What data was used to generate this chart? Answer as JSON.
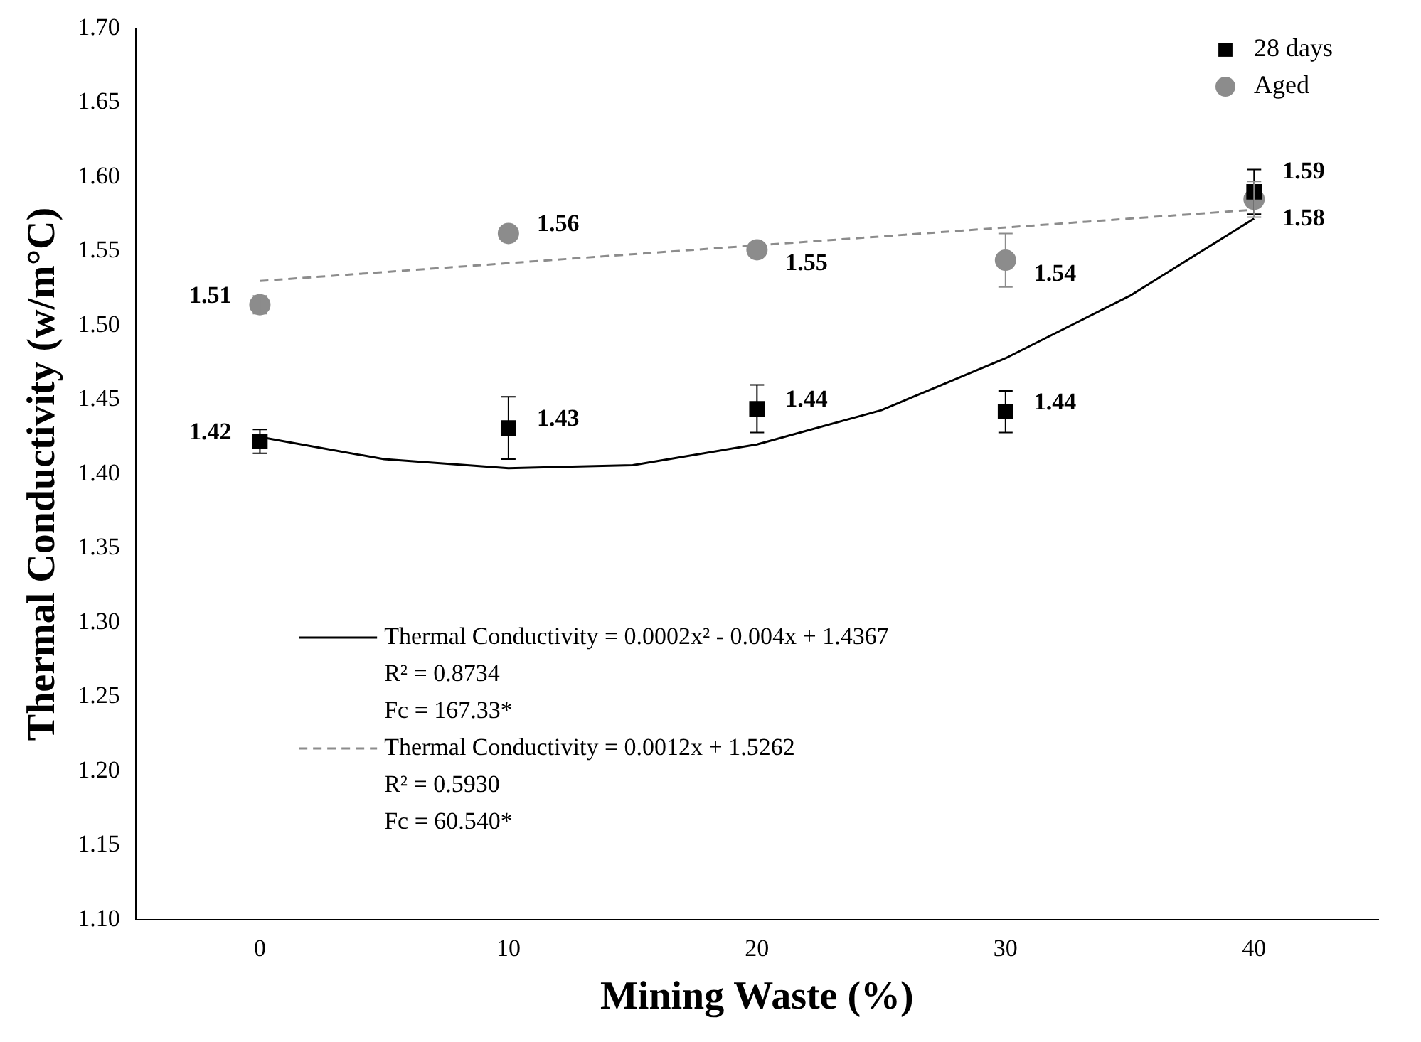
{
  "chart_data": {
    "type": "scatter",
    "xlabel": "Mining Waste (%)",
    "ylabel": "Thermal Conductivity (w/m°C)",
    "x": [
      0,
      10,
      20,
      30,
      40
    ],
    "series": [
      {
        "name": "28 days",
        "marker": "square",
        "color": "#000000",
        "values": [
          1.422,
          1.431,
          1.444,
          1.442,
          1.59
        ],
        "errors": [
          0.008,
          0.021,
          0.016,
          0.014,
          0.015
        ],
        "value_labels": [
          "1.42",
          "1.43",
          "1.44",
          "1.44",
          "1.59"
        ]
      },
      {
        "name": "Aged",
        "marker": "circle",
        "color": "#8c8c8c",
        "values": [
          1.514,
          1.562,
          1.551,
          1.544,
          1.585
        ],
        "errors": [
          0.006,
          null,
          null,
          0.018,
          0.012
        ],
        "value_labels": [
          "1.51",
          "1.56",
          "1.55",
          "1.54",
          "1.58"
        ]
      },
      {
        "name": "Thermal Conductivity = 0.0002x² - 0.004x + 1.4367",
        "type": "line",
        "marker": "none",
        "line_style": "solid",
        "color": "#000000",
        "x": [
          0,
          5,
          10,
          15,
          20,
          25,
          30,
          35,
          40
        ],
        "values": [
          1.425,
          1.41,
          1.404,
          1.406,
          1.42,
          1.443,
          1.478,
          1.52,
          1.572
        ]
      },
      {
        "name": "Thermal Conductivity = 0.0012x + 1.5262",
        "type": "line",
        "marker": "none",
        "line_style": "dashed",
        "color": "#8c8c8c",
        "x": [
          0,
          40
        ],
        "values": [
          1.53,
          1.578
        ]
      }
    ],
    "annotations": [
      "R² = 0.8734",
      "Fc = 167.33*",
      "R² = 0.5930",
      "Fc = 60.540*"
    ],
    "xlim": [
      -5,
      45
    ],
    "xticks": [
      0,
      10,
      20,
      30,
      40
    ],
    "ylim": [
      1.1,
      1.7
    ],
    "yticks": [
      {
        "value": 1.1,
        "label": "1.10"
      },
      {
        "value": 1.15,
        "label": "1.15"
      },
      {
        "value": 1.2,
        "label": "1.20"
      },
      {
        "value": 1.25,
        "label": "1.25"
      },
      {
        "value": 1.3,
        "label": "1.30"
      },
      {
        "value": 1.35,
        "label": "1.35"
      },
      {
        "value": 1.4,
        "label": "1.40"
      },
      {
        "value": 1.45,
        "label": "1.45"
      },
      {
        "value": 1.5,
        "label": "1.50"
      },
      {
        "value": 1.55,
        "label": "1.55"
      },
      {
        "value": 1.6,
        "label": "1.60"
      },
      {
        "value": 1.65,
        "label": "1.65"
      },
      {
        "value": 1.7,
        "label": "1.70"
      }
    ],
    "grid": false,
    "legend": "top right"
  }
}
